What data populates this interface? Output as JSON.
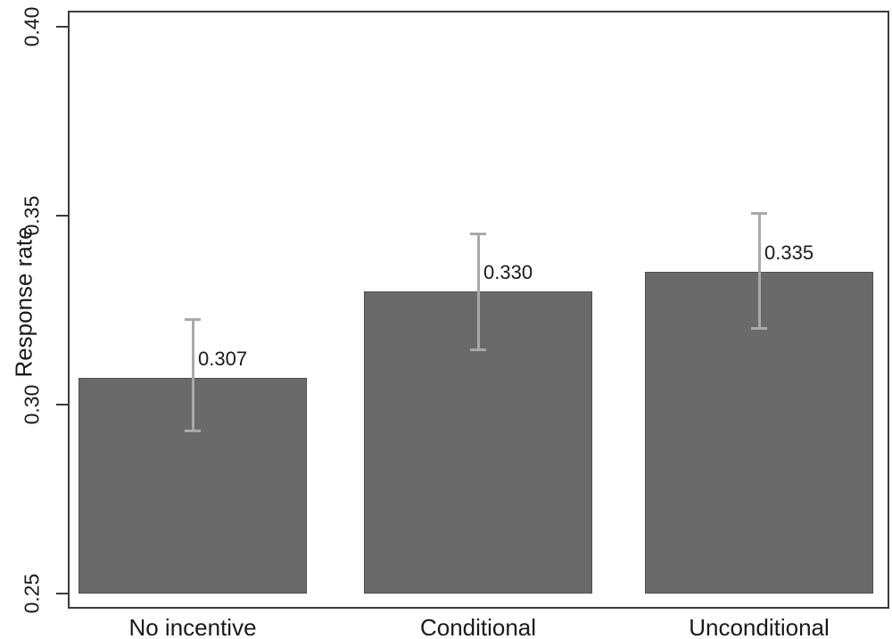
{
  "chart_data": {
    "type": "bar",
    "title": "",
    "xlabel": "",
    "ylabel": "Response rate",
    "categories": [
      "No incentive",
      "Conditional",
      "Unconditional"
    ],
    "values": [
      0.307,
      0.33,
      0.335
    ],
    "value_labels": [
      "0.307",
      "0.330",
      "0.335"
    ],
    "error_bars": [
      {
        "low": 0.293,
        "high": 0.3225
      },
      {
        "low": 0.3145,
        "high": 0.345
      },
      {
        "low": 0.32,
        "high": 0.3505
      }
    ],
    "ylim": [
      0.25,
      0.4
    ],
    "yticks": [
      0.25,
      0.3,
      0.35,
      0.4
    ],
    "ytick_labels": [
      "0.25",
      "0.30",
      "0.35",
      "0.40"
    ],
    "grid": false,
    "legend": "none",
    "colors": {
      "bar_fill": "#6a6a6a",
      "bar_border": "#4e4e4e",
      "error_bar": "#a9a9a9",
      "axis": "#3a3a3a",
      "text": "#1a1a1a"
    }
  }
}
